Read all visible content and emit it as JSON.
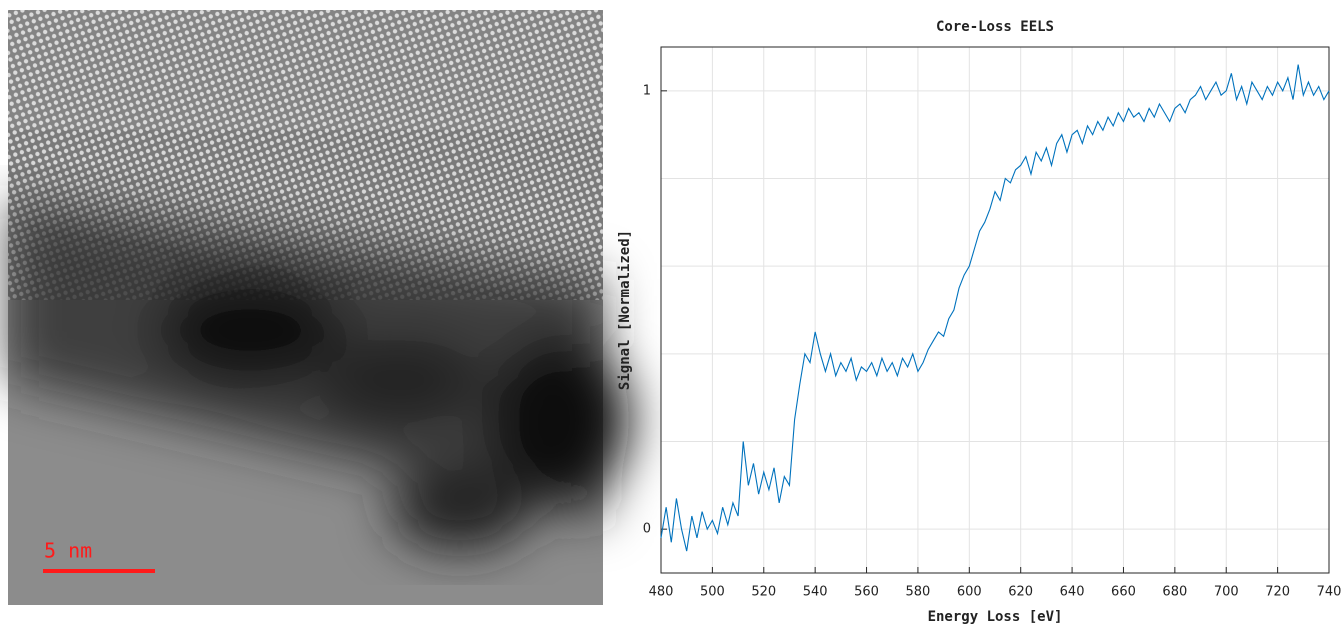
{
  "image": {
    "scale_bar_label": "5 nm"
  },
  "chart_data": {
    "type": "line",
    "title": "Core-Loss EELS",
    "x_label": "Energy Loss [eV]",
    "y_label": "Signal [Normalized]",
    "x": [
      480,
      482,
      484,
      486,
      488,
      490,
      492,
      494,
      496,
      498,
      500,
      502,
      504,
      506,
      508,
      510,
      512,
      514,
      516,
      518,
      520,
      522,
      524,
      526,
      528,
      530,
      532,
      534,
      536,
      538,
      540,
      542,
      544,
      546,
      548,
      550,
      552,
      554,
      556,
      558,
      560,
      562,
      564,
      566,
      568,
      570,
      572,
      574,
      576,
      578,
      580,
      582,
      584,
      586,
      588,
      590,
      592,
      594,
      596,
      598,
      600,
      602,
      604,
      606,
      608,
      610,
      612,
      614,
      616,
      618,
      620,
      622,
      624,
      626,
      628,
      630,
      632,
      634,
      636,
      638,
      640,
      642,
      644,
      646,
      648,
      650,
      652,
      654,
      656,
      658,
      660,
      662,
      664,
      666,
      668,
      670,
      672,
      674,
      676,
      678,
      680,
      682,
      684,
      686,
      688,
      690,
      692,
      694,
      696,
      698,
      700,
      702,
      704,
      706,
      708,
      710,
      712,
      714,
      716,
      718,
      720,
      722,
      724,
      726,
      728,
      730,
      732,
      734,
      736,
      738,
      740
    ],
    "series": [
      {
        "color": "#0072bd",
        "values": [
          -0.02,
          0.05,
          -0.03,
          0.07,
          0.0,
          -0.05,
          0.03,
          -0.02,
          0.04,
          0.0,
          0.02,
          -0.01,
          0.05,
          0.01,
          0.06,
          0.03,
          0.2,
          0.1,
          0.15,
          0.08,
          0.13,
          0.09,
          0.14,
          0.06,
          0.12,
          0.1,
          0.25,
          0.33,
          0.4,
          0.38,
          0.45,
          0.4,
          0.36,
          0.4,
          0.35,
          0.38,
          0.36,
          0.39,
          0.34,
          0.37,
          0.36,
          0.38,
          0.35,
          0.39,
          0.36,
          0.38,
          0.35,
          0.39,
          0.37,
          0.4,
          0.36,
          0.38,
          0.41,
          0.43,
          0.45,
          0.44,
          0.48,
          0.5,
          0.55,
          0.58,
          0.6,
          0.64,
          0.68,
          0.7,
          0.73,
          0.77,
          0.75,
          0.8,
          0.79,
          0.82,
          0.83,
          0.85,
          0.81,
          0.86,
          0.84,
          0.87,
          0.83,
          0.88,
          0.9,
          0.86,
          0.9,
          0.91,
          0.88,
          0.92,
          0.9,
          0.93,
          0.91,
          0.94,
          0.92,
          0.95,
          0.93,
          0.96,
          0.94,
          0.95,
          0.93,
          0.96,
          0.94,
          0.97,
          0.95,
          0.93,
          0.96,
          0.97,
          0.95,
          0.98,
          0.99,
          1.01,
          0.98,
          1.0,
          1.02,
          0.99,
          1.0,
          1.04,
          0.98,
          1.01,
          0.97,
          1.02,
          1.0,
          0.98,
          1.01,
          0.99,
          1.02,
          1.0,
          1.03,
          0.98,
          1.06,
          0.99,
          1.02,
          0.99,
          1.01,
          0.98,
          1.0
        ]
      }
    ],
    "xlim": [
      480,
      740
    ],
    "ylim": [
      -0.1,
      1.1
    ],
    "xticks": [
      480,
      500,
      520,
      540,
      560,
      580,
      600,
      620,
      640,
      660,
      680,
      700,
      720,
      740
    ],
    "yticks": [
      0,
      1
    ],
    "ygrid": [
      0,
      0.2,
      0.4,
      0.6,
      0.8,
      1
    ],
    "grid": true
  }
}
